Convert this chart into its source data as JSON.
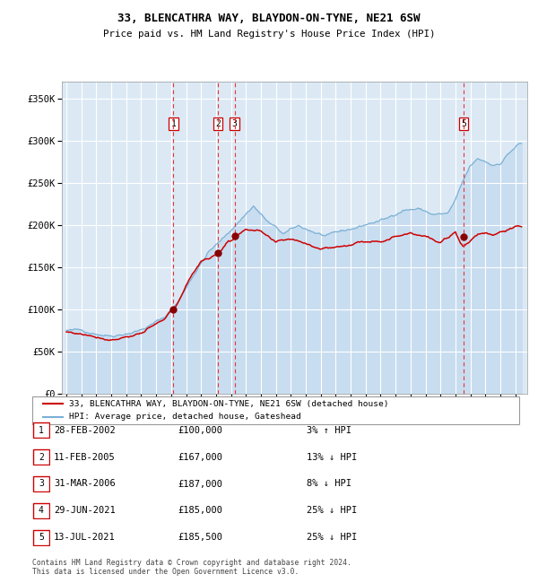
{
  "title1": "33, BLENCATHRA WAY, BLAYDON-ON-TYNE, NE21 6SW",
  "title2": "Price paid vs. HM Land Registry's House Price Index (HPI)",
  "ylim": [
    0,
    370000
  ],
  "yticks": [
    0,
    50000,
    100000,
    150000,
    200000,
    250000,
    300000,
    350000
  ],
  "ytick_labels": [
    "£0",
    "£50K",
    "£100K",
    "£150K",
    "£200K",
    "£250K",
    "£300K",
    "£350K"
  ],
  "xlim_start": 1994.7,
  "xlim_end": 2025.8,
  "xticks": [
    1995,
    1996,
    1997,
    1998,
    1999,
    2000,
    2001,
    2002,
    2003,
    2004,
    2005,
    2006,
    2007,
    2008,
    2009,
    2010,
    2011,
    2012,
    2013,
    2014,
    2015,
    2016,
    2017,
    2018,
    2019,
    2020,
    2021,
    2022,
    2023,
    2024,
    2025
  ],
  "background_color": "#dce9f5",
  "grid_color": "#ffffff",
  "sale_line_color": "#cc0000",
  "hpi_line_color": "#7ab0d4",
  "hpi_fill_color": "#c8ddf0",
  "vline_color": "#ee3333",
  "marker_color": "#880000",
  "sale_events": [
    {
      "num": 1,
      "year": 2002.15,
      "price": 100000,
      "date": "28-FEB-2002",
      "pct": "3%",
      "dir": "↑"
    },
    {
      "num": 2,
      "year": 2005.12,
      "price": 167000,
      "date": "11-FEB-2005",
      "pct": "13%",
      "dir": "↓"
    },
    {
      "num": 3,
      "year": 2006.25,
      "price": 187000,
      "date": "31-MAR-2006",
      "pct": "8%",
      "dir": "↓"
    },
    {
      "num": 4,
      "year": 2021.49,
      "price": 185000,
      "date": "29-JUN-2021",
      "pct": "25%",
      "dir": "↓"
    },
    {
      "num": 5,
      "year": 2021.54,
      "price": 185500,
      "date": "13-JUL-2021",
      "pct": "25%",
      "dir": "↓"
    }
  ],
  "shown_vline_nums": [
    1,
    2,
    3,
    5
  ],
  "legend_line1": "33, BLENCATHRA WAY, BLAYDON-ON-TYNE, NE21 6SW (detached house)",
  "legend_line2": "HPI: Average price, detached house, Gateshead",
  "table_rows": [
    {
      "num": 1,
      "date": "28-FEB-2002",
      "price": "£100,000",
      "pct": "3% ↑ HPI"
    },
    {
      "num": 2,
      "date": "11-FEB-2005",
      "price": "£167,000",
      "pct": "13% ↓ HPI"
    },
    {
      "num": 3,
      "date": "31-MAR-2006",
      "price": "£187,000",
      "pct": "8% ↓ HPI"
    },
    {
      "num": 4,
      "date": "29-JUN-2021",
      "price": "£185,000",
      "pct": "25% ↓ HPI"
    },
    {
      "num": 5,
      "date": "13-JUL-2021",
      "price": "£185,500",
      "pct": "25% ↓ HPI"
    }
  ],
  "footer": "Contains HM Land Registry data © Crown copyright and database right 2024.\nThis data is licensed under the Open Government Licence v3.0."
}
